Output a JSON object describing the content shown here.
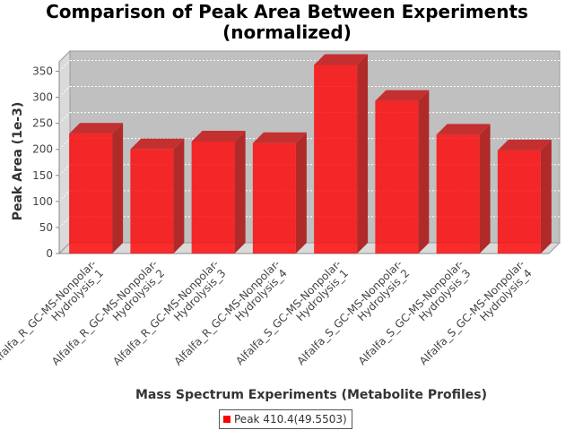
{
  "chart_data": {
    "type": "bar",
    "title": [
      "Comparison of Peak Area Between Experiments",
      "(normalized)"
    ],
    "xlabel": "Mass Spectrum Experiments (Metabolite Profiles)",
    "ylabel": "Peak Area (1e-3)",
    "ylim": [
      0,
      380
    ],
    "yticks": [
      0,
      50,
      100,
      150,
      200,
      250,
      300,
      350
    ],
    "grid": true,
    "legend_position": "bottom",
    "categories": [
      [
        "Alfalfa_R_GC-MS-Nonpolar-",
        "Hydrolysis_1"
      ],
      [
        "Alfalfa_R_GC-MS-Nonpolar-",
        "Hydrolysis_2"
      ],
      [
        "Alfalfa_R_GC-MS-Nonpolar-",
        "Hydrolysis_3"
      ],
      [
        "Alfalfa_R_GC-MS-Nonpolar-",
        "Hydrolysis_4"
      ],
      [
        "Alfalfa_S_GC-MS-Nonpolar-",
        "Hydrolysis_1"
      ],
      [
        "Alfalfa_S_GC-MS-Nonpolar-",
        "Hydrolysis_2"
      ],
      [
        "Alfalfa_S_GC-MS-Nonpolar-",
        "Hydrolysis_3"
      ],
      [
        "Alfalfa_S_GC-MS-Nonpolar-",
        "Hydrolysis_4"
      ]
    ],
    "series": [
      {
        "name": "Peak 410.4(49.5503)",
        "color": "#ff0000",
        "values": [
          230,
          200,
          215,
          212,
          362,
          293,
          228,
          198
        ]
      }
    ]
  }
}
